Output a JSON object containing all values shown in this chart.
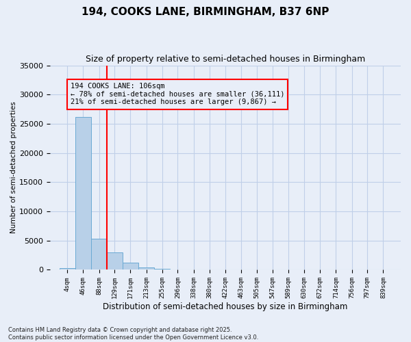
{
  "title": "194, COOKS LANE, BIRMINGHAM, B37 6NP",
  "subtitle": "Size of property relative to semi-detached houses in Birmingham",
  "xlabel": "Distribution of semi-detached houses by size in Birmingham",
  "ylabel": "Number of semi-detached properties",
  "bar_labels": [
    "4sqm",
    "46sqm",
    "88sqm",
    "129sqm",
    "171sqm",
    "213sqm",
    "255sqm",
    "296sqm",
    "338sqm",
    "380sqm",
    "422sqm",
    "463sqm",
    "505sqm",
    "547sqm",
    "589sqm",
    "630sqm",
    "672sqm",
    "714sqm",
    "756sqm",
    "797sqm",
    "839sqm"
  ],
  "bar_values": [
    300,
    26200,
    5300,
    3000,
    1200,
    400,
    150,
    80,
    30,
    10,
    5,
    3,
    2,
    2,
    2,
    2,
    2,
    2,
    2,
    2,
    2
  ],
  "bar_color": "#b8d0e8",
  "bar_edge_color": "#6aaad4",
  "annotation_text": "194 COOKS LANE: 106sqm\n← 78% of semi-detached houses are smaller (36,111)\n21% of semi-detached houses are larger (9,867) →",
  "vline_color": "red",
  "annotation_box_edgecolor": "red",
  "ylim": [
    0,
    35000
  ],
  "yticks": [
    0,
    5000,
    10000,
    15000,
    20000,
    25000,
    30000,
    35000
  ],
  "footer_text": "Contains HM Land Registry data © Crown copyright and database right 2025.\nContains public sector information licensed under the Open Government Licence v3.0.",
  "bg_color": "#e8eef8",
  "grid_color": "#c0cfe8",
  "title_fontsize": 11,
  "subtitle_fontsize": 9,
  "annotation_fontsize": 7.5
}
